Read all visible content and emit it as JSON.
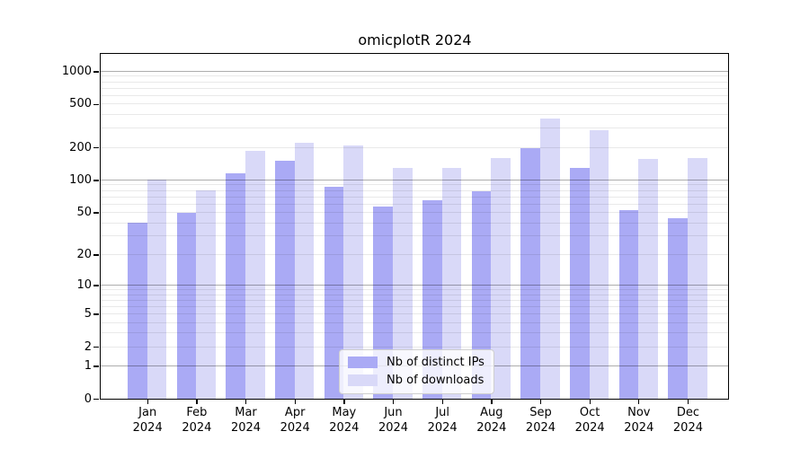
{
  "chart_data": {
    "type": "bar",
    "title": "omicplotR 2024",
    "categories": [
      "Jan",
      "Feb",
      "Mar",
      "Apr",
      "May",
      "Jun",
      "Jul",
      "Aug",
      "Sep",
      "Oct",
      "Nov",
      "Dec"
    ],
    "year": "2024",
    "series": [
      {
        "key": "distinct-ips",
        "name": "Nb of distinct IPs",
        "color": "#aaaaf5",
        "values": [
          40,
          50,
          115,
          150,
          86,
          57,
          65,
          78,
          195,
          130,
          52,
          44
        ]
      },
      {
        "key": "downloads",
        "name": "Nb of downloads",
        "color": "#d9d9f8",
        "values": [
          100,
          80,
          185,
          220,
          210,
          130,
          130,
          160,
          370,
          290,
          157,
          160
        ]
      }
    ],
    "y_ticks": [
      0,
      1,
      2,
      5,
      10,
      20,
      50,
      100,
      200,
      500,
      1000
    ],
    "y_scale": "log10(value+1)",
    "ylim": [
      0,
      1445
    ],
    "grid": "horizontal: major gray lines at 1,10,100,1000; faint minor lines at 2-9 per decade, drawn over bars",
    "legend_position": "inside-bottom-center",
    "axis_color": "#000000",
    "major_grid_color": "#a8a8a8",
    "minor_grid_color": "#e9e9e9"
  }
}
